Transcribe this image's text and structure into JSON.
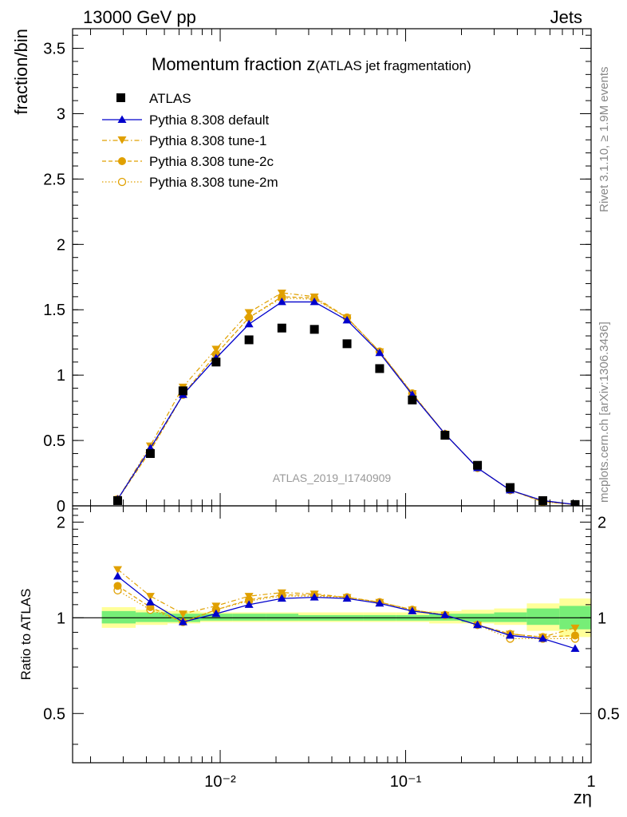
{
  "header": {
    "left": "13000 GeV pp",
    "right": "Jets"
  },
  "title": {
    "main": "Momentum fraction z",
    "sub": "(ATLAS jet fragmentation)"
  },
  "side_labels": {
    "rivet": "Rivet 3.1.10, ≥ 1.9M events",
    "mcplots": "mcplots.cern.ch [arXiv:1306.3436]"
  },
  "watermark": "ATLAS_2019_I1740909",
  "colors": {
    "data": "#000000",
    "default": "#0000cc",
    "tunes": "#e0a000",
    "band_inner": "#77ee77",
    "band_outer": "#ffff99"
  },
  "chart_data": [
    {
      "panel": "main",
      "type": "scatter",
      "ylabel": "fraction/bin",
      "xscale": "log",
      "xlim": [
        0.0016,
        1.0
      ],
      "ylim": [
        0,
        3.65
      ],
      "yticks": [
        "0",
        "0.5",
        "1",
        "1.5",
        "2",
        "2.5",
        "3",
        "3.5"
      ],
      "legend_position": "top-left",
      "x": [
        0.0028,
        0.0042,
        0.0063,
        0.0095,
        0.0143,
        0.0215,
        0.0322,
        0.0483,
        0.0724,
        0.1086,
        0.163,
        0.244,
        0.366,
        0.549,
        0.82
      ],
      "series": [
        {
          "name": "ATLAS",
          "style": "data",
          "values": [
            0.04,
            0.4,
            0.88,
            1.1,
            1.27,
            1.36,
            1.35,
            1.24,
            1.05,
            0.81,
            0.54,
            0.31,
            0.14,
            0.04,
            0.01
          ]
        },
        {
          "name": "Pythia 8.308 default",
          "style": "default",
          "values": [
            0.05,
            0.44,
            0.85,
            1.13,
            1.39,
            1.56,
            1.56,
            1.42,
            1.17,
            0.85,
            0.55,
            0.29,
            0.12,
            0.04,
            0.01
          ]
        },
        {
          "name": "Pythia 8.308 tune-1",
          "style": "tune1",
          "values": [
            0.05,
            0.46,
            0.91,
            1.2,
            1.48,
            1.63,
            1.6,
            1.44,
            1.18,
            0.86,
            0.55,
            0.29,
            0.12,
            0.04,
            0.01
          ]
        },
        {
          "name": "Pythia 8.308 tune-2c",
          "style": "tune2c",
          "values": [
            0.05,
            0.42,
            0.85,
            1.16,
            1.44,
            1.6,
            1.59,
            1.44,
            1.18,
            0.86,
            0.55,
            0.29,
            0.12,
            0.03,
            0.01
          ]
        },
        {
          "name": "Pythia 8.308 tune-2m",
          "style": "tune2m",
          "values": [
            0.05,
            0.42,
            0.85,
            1.16,
            1.44,
            1.59,
            1.58,
            1.44,
            1.18,
            0.86,
            0.55,
            0.29,
            0.12,
            0.03,
            0.01
          ]
        }
      ]
    },
    {
      "panel": "ratio",
      "type": "line",
      "ylabel": "Ratio to ATLAS",
      "xlabel": "zη",
      "xscale": "log",
      "xlim": [
        0.0016,
        1.0
      ],
      "ylim": [
        0.35,
        2.25
      ],
      "yticks": [
        "0.5",
        "1",
        "2"
      ],
      "xticks": [
        "10⁻²",
        "10⁻¹",
        "1"
      ],
      "bin_edges": [
        0.0023,
        0.0035,
        0.0052,
        0.0078,
        0.0117,
        0.0176,
        0.0264,
        0.0396,
        0.0594,
        0.089,
        0.134,
        0.2,
        0.3,
        0.45,
        0.675,
        1.0
      ],
      "band_inner": [
        [
          0.96,
          1.05
        ],
        [
          0.97,
          1.04
        ],
        [
          0.97,
          1.03
        ],
        [
          0.98,
          1.03
        ],
        [
          0.98,
          1.03
        ],
        [
          0.98,
          1.03
        ],
        [
          0.98,
          1.02
        ],
        [
          0.98,
          1.02
        ],
        [
          0.98,
          1.02
        ],
        [
          0.98,
          1.02
        ],
        [
          0.98,
          1.03
        ],
        [
          0.97,
          1.03
        ],
        [
          0.97,
          1.04
        ],
        [
          0.95,
          1.07
        ],
        [
          0.92,
          1.09
        ]
      ],
      "band_outer": [
        [
          0.93,
          1.08
        ],
        [
          0.95,
          1.06
        ],
        [
          0.96,
          1.05
        ],
        [
          0.97,
          1.04
        ],
        [
          0.97,
          1.04
        ],
        [
          0.97,
          1.04
        ],
        [
          0.97,
          1.04
        ],
        [
          0.97,
          1.04
        ],
        [
          0.97,
          1.04
        ],
        [
          0.97,
          1.04
        ],
        [
          0.96,
          1.05
        ],
        [
          0.96,
          1.06
        ],
        [
          0.95,
          1.07
        ],
        [
          0.91,
          1.11
        ],
        [
          0.87,
          1.15
        ]
      ],
      "series": [
        {
          "name": "Pythia 8.308 default",
          "style": "default",
          "values": [
            1.35,
            1.12,
            0.97,
            1.03,
            1.1,
            1.15,
            1.16,
            1.15,
            1.11,
            1.05,
            1.02,
            0.95,
            0.88,
            0.86,
            0.8
          ]
        },
        {
          "name": "Pythia 8.308 tune-1",
          "style": "tune1",
          "values": [
            1.42,
            1.17,
            1.03,
            1.09,
            1.17,
            1.2,
            1.19,
            1.16,
            1.12,
            1.06,
            1.02,
            0.95,
            0.89,
            0.87,
            0.93
          ]
        },
        {
          "name": "Pythia 8.308 tune-2c",
          "style": "tune2c",
          "values": [
            1.26,
            1.08,
            0.97,
            1.06,
            1.14,
            1.18,
            1.18,
            1.16,
            1.12,
            1.06,
            1.02,
            0.95,
            0.89,
            0.87,
            0.88
          ]
        },
        {
          "name": "Pythia 8.308 tune-2m",
          "style": "tune2m",
          "values": [
            1.22,
            1.06,
            0.97,
            1.06,
            1.13,
            1.17,
            1.17,
            1.16,
            1.12,
            1.06,
            1.02,
            0.95,
            0.86,
            0.86,
            0.86
          ]
        }
      ]
    }
  ]
}
